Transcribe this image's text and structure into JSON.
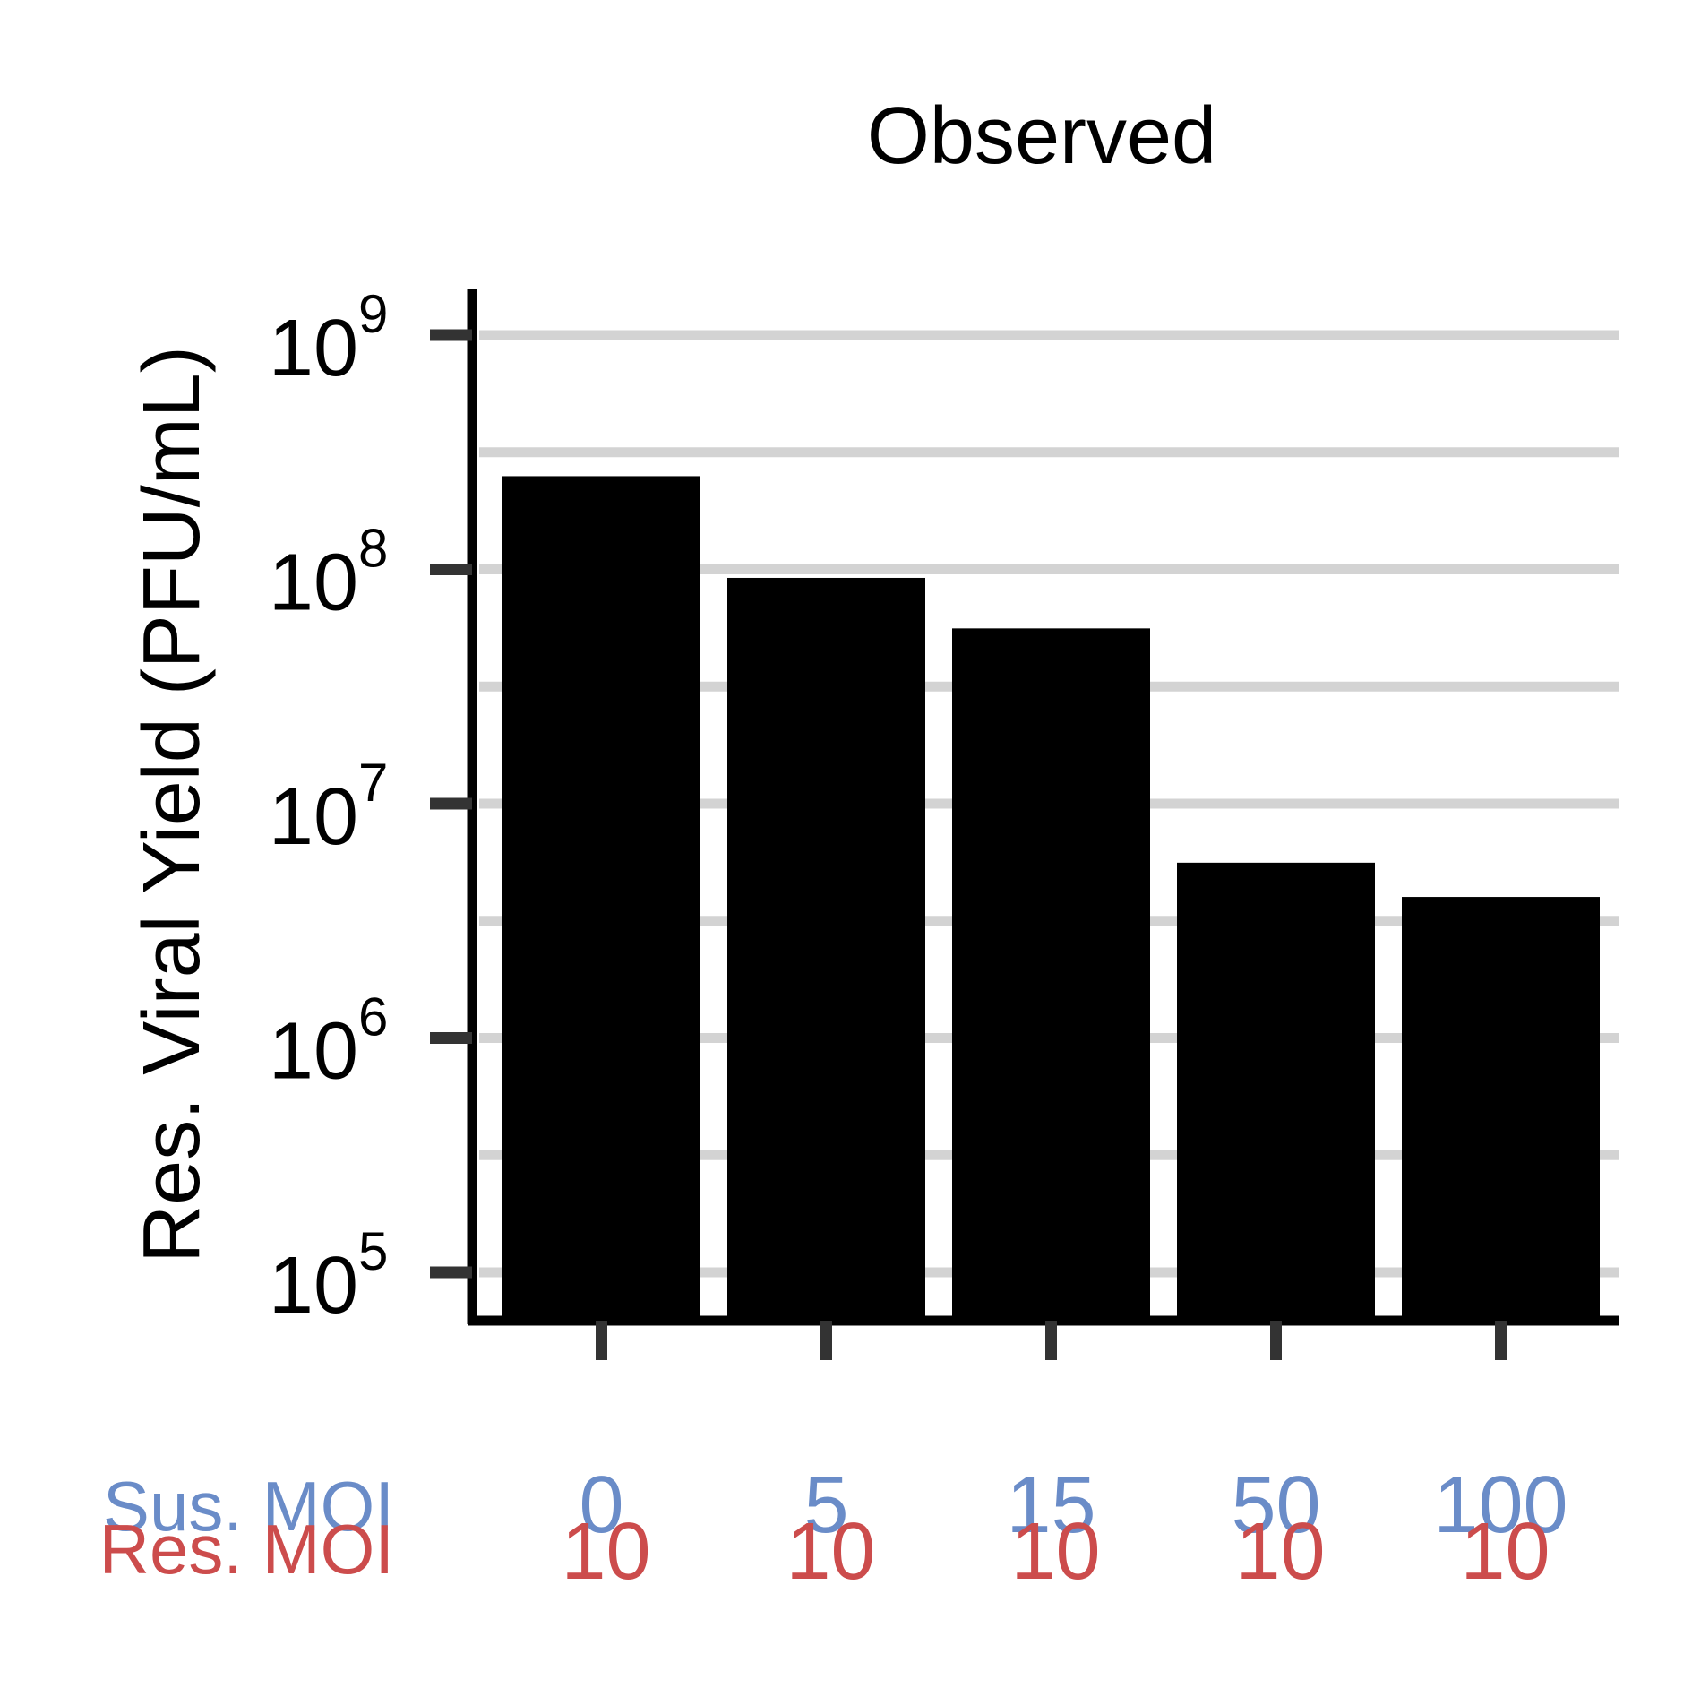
{
  "chart_data": {
    "type": "bar",
    "title": "Observed",
    "ylabel": "Res. Viral Yield (PFU/mL)",
    "yscale": "log10",
    "ylim": [
      60000,
      1500000000
    ],
    "yticks": [
      {
        "value": 100000,
        "base": "10",
        "exp": "5"
      },
      {
        "value": 1000000,
        "base": "10",
        "exp": "6"
      },
      {
        "value": 10000000,
        "base": "10",
        "exp": "7"
      },
      {
        "value": 100000000,
        "base": "10",
        "exp": "8"
      },
      {
        "value": 1000000000,
        "base": "10",
        "exp": "9"
      }
    ],
    "grid": true,
    "minor_grid_values": [
      316228,
      3162278,
      31622777,
      316227766
    ],
    "row_labels": {
      "sus": {
        "label": "Sus. MOI",
        "color": "#6a8cc8"
      },
      "res": {
        "label": "Res. MOI",
        "color": "#cc4c4c"
      }
    },
    "categories": [
      {
        "sus": "0",
        "res": "10"
      },
      {
        "sus": "5",
        "res": "10"
      },
      {
        "sus": "15",
        "res": "10"
      },
      {
        "sus": "50",
        "res": "10"
      },
      {
        "sus": "100",
        "res": "10"
      }
    ],
    "values": [
      250000000,
      92000000,
      56000000,
      5600000,
      4000000
    ],
    "bar_color": "#000000",
    "grid_color": "#d3d3d3"
  }
}
